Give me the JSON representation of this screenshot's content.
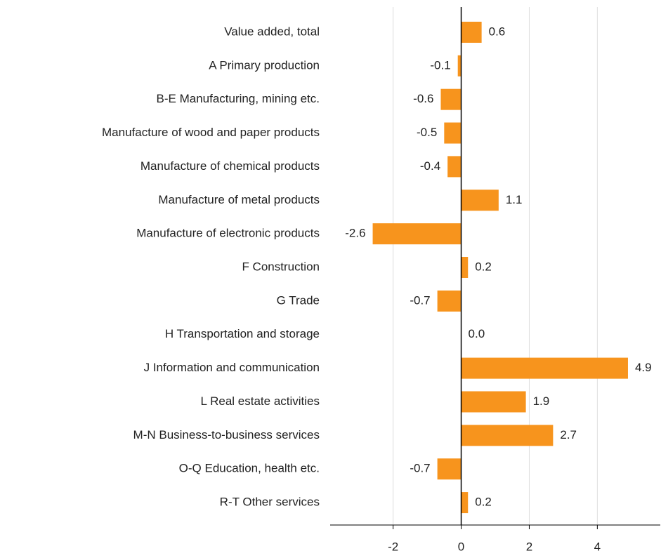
{
  "chart_data": {
    "type": "bar",
    "orientation": "horizontal",
    "categories": [
      "Value added, total",
      "A Primary production",
      "B-E Manufacturing, mining etc.",
      "Manufacture of wood and paper products",
      "Manufacture of chemical products",
      "Manufacture of metal products",
      "Manufacture of electronic products",
      "F Construction",
      "G Trade",
      "H Transportation and storage",
      "J Information and communication",
      "L Real estate activities",
      "M-N Business-to-business services",
      "O-Q Education, health etc.",
      "R-T Other services"
    ],
    "values": [
      0.6,
      -0.1,
      -0.6,
      -0.5,
      -0.4,
      1.1,
      -2.6,
      0.2,
      -0.7,
      0,
      4.9,
      1.9,
      2.7,
      -0.7,
      0.2
    ],
    "value_labels": [
      "0.6",
      "-0.1",
      "-0.6",
      "-0.5",
      "-0.4",
      "1.1",
      "-2.6",
      "0.2",
      "-0.7",
      "0.0",
      "4.9",
      "1.9",
      "2.7",
      "-0.7",
      "0.2"
    ],
    "color": "#f7941d",
    "xlim": [
      -3.85,
      5.85
    ],
    "xticks": [
      -2,
      0,
      2,
      4
    ],
    "grid": true
  }
}
